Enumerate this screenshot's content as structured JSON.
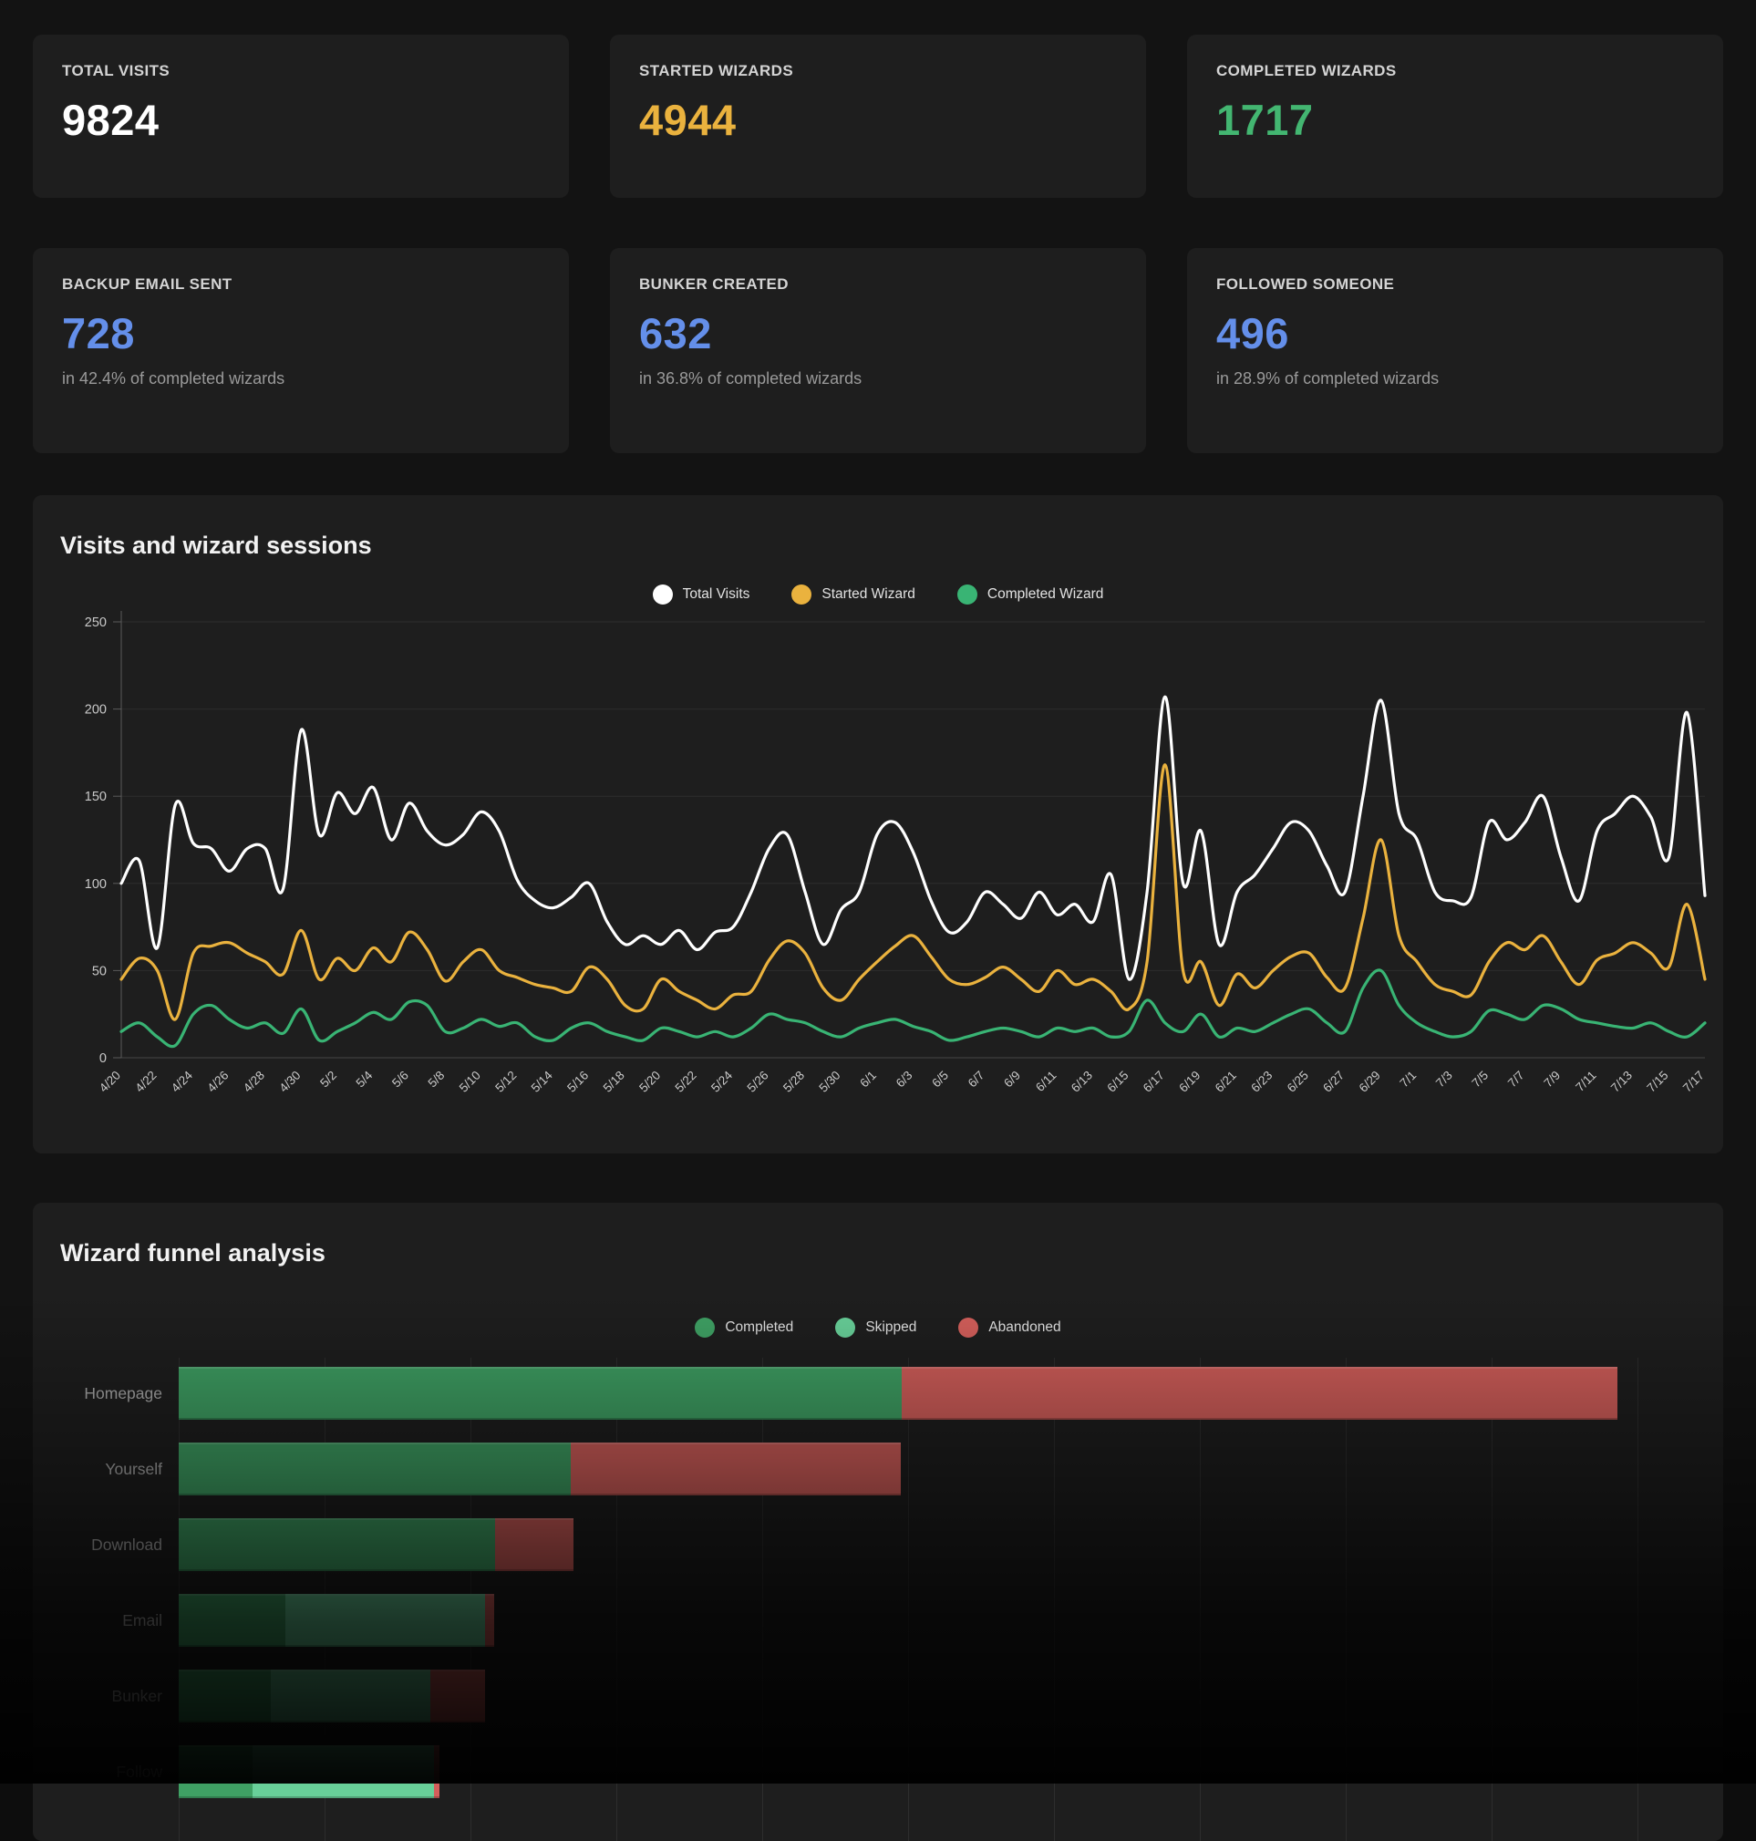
{
  "cards": [
    {
      "label": "TOTAL VISITS",
      "value": "9824",
      "color": "#ffffff"
    },
    {
      "label": "STARTED WIZARDS",
      "value": "4944",
      "color": "#eab23e"
    },
    {
      "label": "COMPLETED WIZARDS",
      "value": "1717",
      "color": "#43b671"
    },
    {
      "label": "BACKUP EMAIL SENT",
      "value": "728",
      "color": "#648fea",
      "subtitle": "in 42.4% of completed wizards"
    },
    {
      "label": "BUNKER CREATED",
      "value": "632",
      "color": "#648fea",
      "subtitle": "in 36.8% of completed wizards"
    },
    {
      "label": "FOLLOWED SOMEONE",
      "value": "496",
      "color": "#648fea",
      "subtitle": "in 28.9% of completed wizards"
    }
  ],
  "chart_data": [
    {
      "type": "line",
      "title": "Visits and wizard sessions",
      "xlabel": "",
      "ylabel": "",
      "ylim": [
        0,
        250
      ],
      "yticks": [
        0,
        50,
        100,
        150,
        200,
        250
      ],
      "grid": "horizontal",
      "legend_position": "top-center",
      "x_tick_labels": [
        "4/20",
        "4/22",
        "4/24",
        "4/26",
        "4/28",
        "4/30",
        "5/2",
        "5/4",
        "5/6",
        "5/8",
        "5/10",
        "5/12",
        "5/14",
        "5/16",
        "5/18",
        "5/20",
        "5/22",
        "5/24",
        "5/26",
        "5/28",
        "5/30",
        "6/1",
        "6/3",
        "6/5",
        "6/7",
        "6/9",
        "6/11",
        "6/13",
        "6/15",
        "6/17",
        "6/19",
        "6/21",
        "6/23",
        "6/25",
        "6/27",
        "6/29",
        "7/1",
        "7/3",
        "7/5",
        "7/7",
        "7/9",
        "7/11",
        "7/13",
        "7/15",
        "7/17"
      ],
      "series": [
        {
          "name": "Total Visits",
          "color": "#ffffff",
          "values": [
            100,
            113,
            63,
            145,
            123,
            120,
            107,
            120,
            120,
            97,
            188,
            128,
            152,
            140,
            155,
            125,
            146,
            130,
            122,
            128,
            141,
            130,
            102,
            90,
            86,
            92,
            100,
            78,
            65,
            70,
            65,
            73,
            62,
            72,
            75,
            95,
            120,
            128,
            95,
            65,
            85,
            95,
            128,
            135,
            118,
            90,
            72,
            78,
            95,
            88,
            80,
            95,
            82,
            88,
            78,
            105,
            45,
            95,
            207,
            100,
            130,
            65,
            95,
            105,
            120,
            135,
            130,
            110,
            95,
            150,
            205,
            140,
            125,
            95,
            90,
            92,
            135,
            125,
            135,
            150,
            115,
            90,
            130,
            140,
            150,
            138,
            115,
            198,
            93
          ]
        },
        {
          "name": "Started Wizard",
          "color": "#eab23e",
          "values": [
            45,
            57,
            50,
            22,
            60,
            64,
            66,
            60,
            55,
            48,
            73,
            45,
            57,
            50,
            63,
            55,
            72,
            62,
            44,
            55,
            62,
            50,
            46,
            42,
            40,
            38,
            52,
            45,
            30,
            28,
            45,
            38,
            33,
            28,
            36,
            38,
            56,
            67,
            60,
            40,
            33,
            45,
            55,
            64,
            70,
            58,
            45,
            42,
            46,
            52,
            45,
            38,
            50,
            42,
            45,
            38,
            28,
            55,
            168,
            50,
            55,
            30,
            48,
            40,
            50,
            58,
            60,
            46,
            40,
            80,
            125,
            70,
            55,
            42,
            38,
            36,
            55,
            66,
            62,
            70,
            55,
            42,
            56,
            60,
            66,
            60,
            52,
            88,
            45
          ]
        },
        {
          "name": "Completed Wizard",
          "color": "#39b474",
          "values": [
            15,
            20,
            12,
            7,
            25,
            30,
            22,
            17,
            20,
            14,
            28,
            10,
            15,
            20,
            26,
            22,
            32,
            30,
            15,
            17,
            22,
            18,
            20,
            12,
            10,
            17,
            20,
            15,
            12,
            10,
            17,
            15,
            12,
            15,
            12,
            17,
            25,
            22,
            20,
            15,
            12,
            17,
            20,
            22,
            18,
            15,
            10,
            12,
            15,
            17,
            15,
            12,
            17,
            15,
            17,
            12,
            15,
            33,
            20,
            15,
            25,
            12,
            17,
            15,
            20,
            25,
            28,
            20,
            15,
            40,
            50,
            30,
            20,
            15,
            12,
            15,
            27,
            25,
            22,
            30,
            28,
            22,
            20,
            18,
            17,
            20,
            15,
            12,
            20
          ]
        }
      ]
    },
    {
      "type": "bar",
      "orientation": "horizontal",
      "stacked": true,
      "title": "Wizard funnel analysis",
      "xlabel": "",
      "ylabel": "",
      "xlim": [
        0,
        5200
      ],
      "grid_step": 500,
      "grid": "vertical",
      "legend_position": "top-center",
      "categories": [
        "Homepage",
        "Yourself",
        "Download",
        "Email",
        "Bunker",
        "Follow"
      ],
      "series": [
        {
          "name": "Completed",
          "color": "#3fa164",
          "values": [
            2478,
            1345,
            1084,
            366,
            317,
            252
          ]
        },
        {
          "name": "Skipped",
          "color": "#68d099",
          "values": [
            0,
            0,
            0,
            683,
            547,
            624
          ]
        },
        {
          "name": "Abandoned",
          "color": "#d45f5b",
          "values": [
            2453,
            1130,
            270,
            31,
            186,
            19
          ]
        }
      ]
    }
  ]
}
